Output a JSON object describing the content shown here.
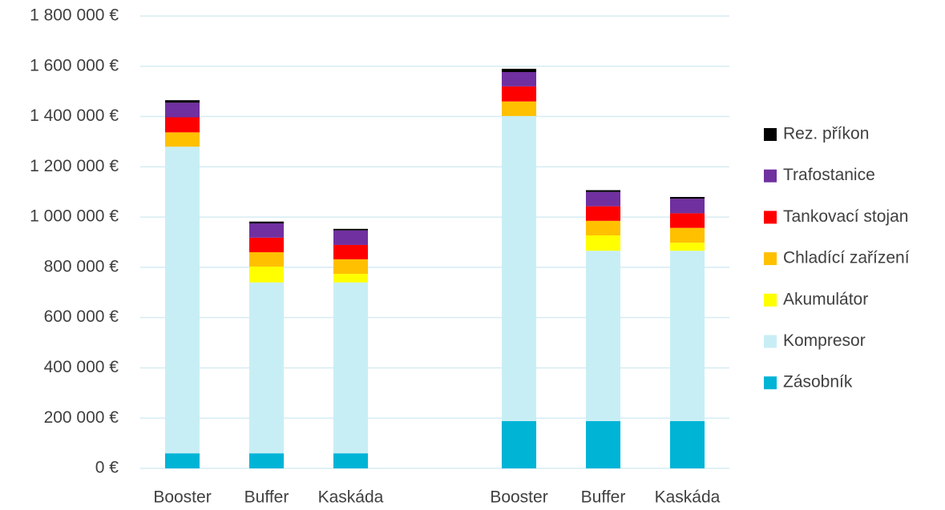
{
  "chart_data": {
    "type": "stacked_bar",
    "categories": [
      "Booster",
      "Buffer",
      "Kaskáda",
      null,
      "Booster",
      "Buffer",
      "Kaskáda"
    ],
    "series": [
      {
        "name": "Zásobník",
        "color": "#00b4d6",
        "values": [
          60000,
          60000,
          60000,
          null,
          188000,
          188000,
          188000
        ]
      },
      {
        "name": "Kompresor",
        "color": "#c8eef5",
        "values": [
          1220000,
          680000,
          680000,
          null,
          1214000,
          678000,
          678000
        ]
      },
      {
        "name": "Akumulátor",
        "color": "#ffff00",
        "values": [
          0,
          63000,
          34000,
          null,
          0,
          61000,
          32000
        ]
      },
      {
        "name": "Chladící zařízení",
        "color": "#ffc000",
        "values": [
          57000,
          57000,
          58000,
          null,
          58000,
          58000,
          59000
        ]
      },
      {
        "name": "Tankovací stojan",
        "color": "#ff0000",
        "values": [
          60000,
          58000,
          57000,
          null,
          60000,
          58000,
          58000
        ]
      },
      {
        "name": "Trafostanice",
        "color": "#7030a0",
        "values": [
          58000,
          57000,
          58000,
          null,
          57000,
          57000,
          58000
        ]
      },
      {
        "name": "Rez. příkon",
        "color": "#000000",
        "values": [
          10000,
          7000,
          6000,
          null,
          13000,
          7000,
          7000
        ]
      }
    ],
    "ylim": [
      0,
      1800000
    ],
    "yticks": [
      {
        "value": 0,
        "label": "0 €"
      },
      {
        "value": 200000,
        "label": "200 000 €"
      },
      {
        "value": 400000,
        "label": "400 000 €"
      },
      {
        "value": 600000,
        "label": "600 000 €"
      },
      {
        "value": 800000,
        "label": "800 000 €"
      },
      {
        "value": 1000000,
        "label": "1 000 000 €"
      },
      {
        "value": 1200000,
        "label": "1 200 000 €"
      },
      {
        "value": 1400000,
        "label": "1 400 000 €"
      },
      {
        "value": 1600000,
        "label": "1 600 000 €"
      },
      {
        "value": 1800000,
        "label": "1 800 000 €"
      }
    ],
    "grid": true,
    "legend": "right"
  }
}
